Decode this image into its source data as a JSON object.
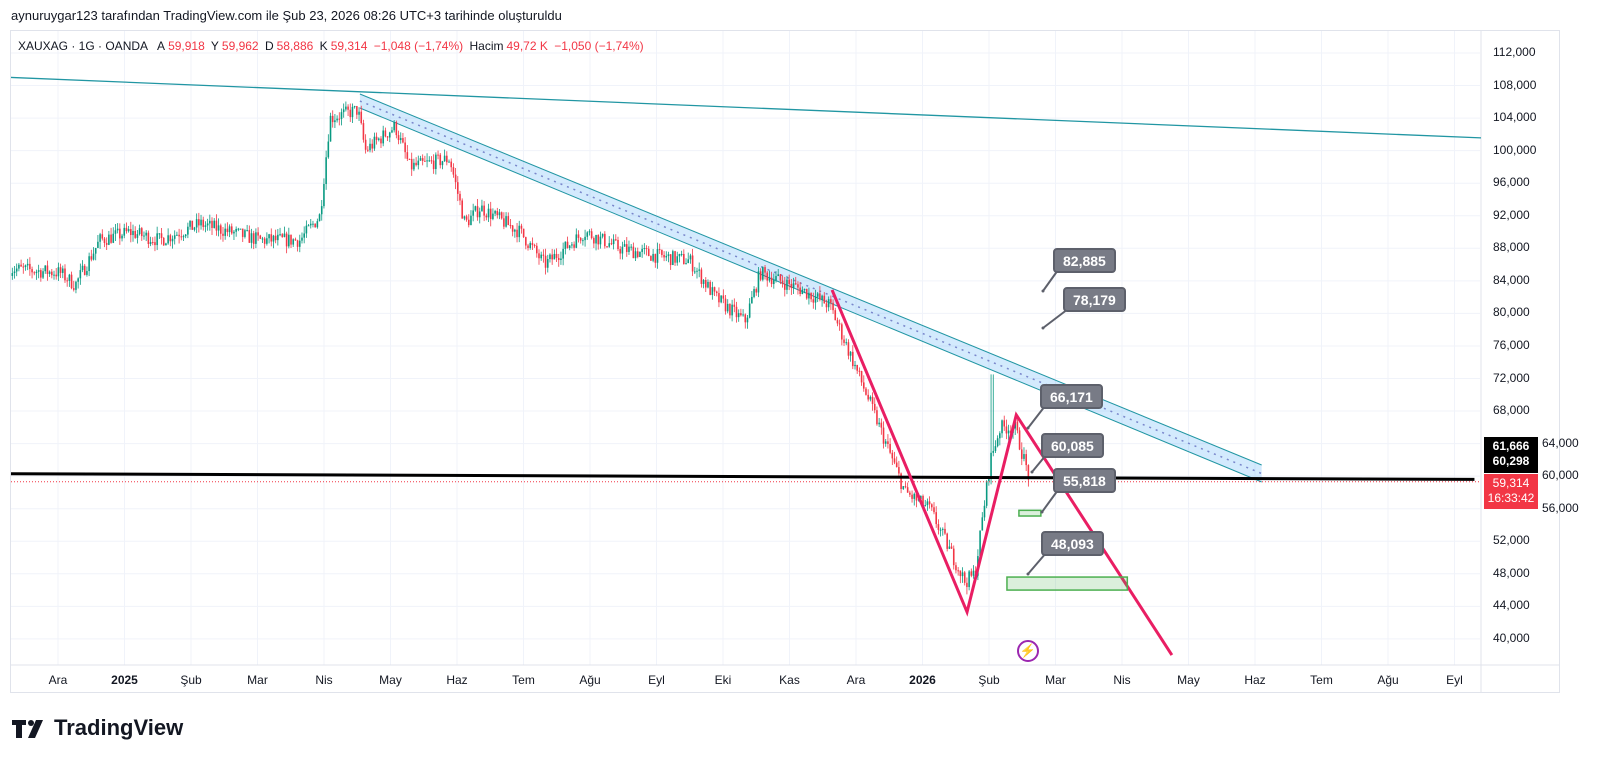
{
  "caption": "aynuruygar123 tarafından TradingView.com ile Şub 23, 2026 08:26 UTC+3 tarihinde oluşturuldu",
  "legend": {
    "symbol": "XAUXAG · 1G · OANDA",
    "open_label": "A",
    "open": "59,918",
    "high_label": "Y",
    "high": "59,962",
    "low_label": "D",
    "low": "58,886",
    "close_label": "K",
    "close": "59,314",
    "change": "−1,048 (−1,74%)",
    "volume_label": "Hacim",
    "volume": "49,72 K",
    "volume_change": "−1,050 (−1,74%)"
  },
  "price_tags": {
    "high_tag": "61,666",
    "low_tag": "60,298",
    "last": "59,314",
    "countdown": "16:33:42"
  },
  "callouts": [
    "82,885",
    "78,179",
    "66,171",
    "60,085",
    "55,818",
    "48,093"
  ],
  "logo_text": "TradingView",
  "colors": {
    "up": "#089981",
    "down": "#f23645",
    "trend": "#2196a3",
    "channel": "#1e88e5",
    "pink": "#e91e63",
    "green": "#4caf50"
  },
  "chart_data": {
    "type": "candlestick",
    "title": "XAUXAG · 1G · OANDA",
    "x_unit": "months since Dec 2024",
    "xlim": [
      -0.72,
      21.2
    ],
    "ylim": [
      36500,
      114500
    ],
    "y_ticks": [
      "112,000",
      "108,000",
      "104,000",
      "100,000",
      "96,000",
      "92,000",
      "88,000",
      "84,000",
      "80,000",
      "76,000",
      "72,000",
      "68,000",
      "64,000",
      "60,000",
      "56,000",
      "52,000",
      "48,000",
      "44,000",
      "40,000"
    ],
    "y_tick_values": [
      112000,
      108000,
      104000,
      100000,
      96000,
      92000,
      88000,
      84000,
      80000,
      76000,
      72000,
      68000,
      64000,
      60000,
      56000,
      52000,
      48000,
      44000,
      40000
    ],
    "x_ticks": [
      {
        "t": 0,
        "label": "Ara"
      },
      {
        "t": 1,
        "label": "2025",
        "bold": true
      },
      {
        "t": 2,
        "label": "Şub"
      },
      {
        "t": 3,
        "label": "Mar"
      },
      {
        "t": 4,
        "label": "Nis"
      },
      {
        "t": 5,
        "label": "May"
      },
      {
        "t": 6,
        "label": "Haz"
      },
      {
        "t": 7,
        "label": "Tem"
      },
      {
        "t": 8,
        "label": "Ağu"
      },
      {
        "t": 9,
        "label": "Eyl"
      },
      {
        "t": 10,
        "label": "Eki"
      },
      {
        "t": 11,
        "label": "Kas"
      },
      {
        "t": 12,
        "label": "Ara"
      },
      {
        "t": 13,
        "label": "2026",
        "bold": true
      },
      {
        "t": 14,
        "label": "Şub"
      },
      {
        "t": 15,
        "label": "Mar"
      },
      {
        "t": 16,
        "label": "Nis"
      },
      {
        "t": 17,
        "label": "May"
      },
      {
        "t": 18,
        "label": "Haz"
      },
      {
        "t": 19,
        "label": "Tem"
      },
      {
        "t": 20,
        "label": "Ağu"
      },
      {
        "t": 21,
        "label": "Eyl"
      }
    ],
    "price_path": [
      [
        -0.72,
        85500
      ],
      [
        0.03,
        85000
      ],
      [
        0.26,
        83500
      ],
      [
        0.63,
        89000
      ],
      [
        1.08,
        90000
      ],
      [
        1.53,
        89000
      ],
      [
        2.14,
        91000
      ],
      [
        3.04,
        89000
      ],
      [
        3.64,
        89000
      ],
      [
        3.94,
        92000
      ],
      [
        4.09,
        104000
      ],
      [
        4.51,
        105000
      ],
      [
        4.62,
        100000
      ],
      [
        5.07,
        103000
      ],
      [
        5.29,
        98000
      ],
      [
        5.89,
        99000
      ],
      [
        6.12,
        91000
      ],
      [
        6.35,
        93000
      ],
      [
        6.95,
        90000
      ],
      [
        7.32,
        86000
      ],
      [
        7.92,
        90000
      ],
      [
        8.45,
        88000
      ],
      [
        9.05,
        87000
      ],
      [
        9.5,
        86500
      ],
      [
        9.88,
        82000
      ],
      [
        10.33,
        79000
      ],
      [
        10.56,
        85000
      ],
      [
        11.16,
        83000
      ],
      [
        11.61,
        81000
      ],
      [
        11.91,
        75000
      ],
      [
        12.21,
        69000
      ],
      [
        12.74,
        58000
      ],
      [
        13.11,
        56000
      ],
      [
        13.64,
        47000
      ],
      [
        13.79,
        48000
      ],
      [
        14.02,
        62000
      ],
      [
        14.17,
        66000
      ],
      [
        14.39,
        66000
      ],
      [
        14.62,
        59314
      ]
    ],
    "last_price": 59314,
    "drawings": {
      "long_trendline": [
        [
          -0.72,
          109000
        ],
        [
          22.2,
          101300
        ]
      ],
      "channel_upper": [
        [
          4.54,
          106960
        ],
        [
          18.1,
          61370
        ]
      ],
      "channel_lower": [
        [
          4.54,
          105240
        ],
        [
          18.1,
          59280
        ]
      ],
      "horizontal_level": [
        [
          -0.72,
          60300
        ],
        [
          21.3,
          59600
        ]
      ],
      "pink_zigzag": [
        [
          11.64,
          82880
        ],
        [
          13.67,
          43300
        ],
        [
          14.41,
          67520
        ],
        [
          16.75,
          38020
        ]
      ],
      "green_boxes": [
        [
          [
            14.45,
            55800
          ],
          [
            14.78,
            55100
          ]
        ],
        [
          [
            14.27,
            47600
          ],
          [
            16.08,
            46000
          ]
        ]
      ]
    }
  }
}
